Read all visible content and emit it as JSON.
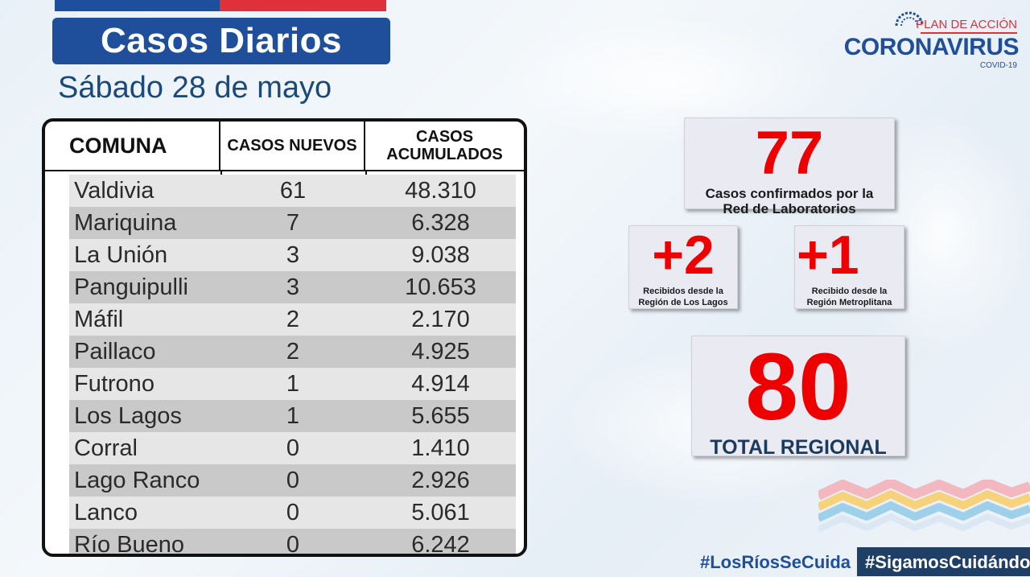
{
  "header": {
    "title": "Casos Diarios",
    "date": "Sábado 28 de mayo"
  },
  "logo": {
    "plan": "PLAN DE ACCIÓN",
    "name": "CORONAVIRUS",
    "covid": "COVID-19"
  },
  "table": {
    "columns": [
      "COMUNA",
      "CASOS NUEVOS",
      "CASOS ACUMULADOS"
    ],
    "col3_line1": "CASOS",
    "col3_line2": "ACUMULADOS",
    "rows": [
      {
        "comuna": "Valdivia",
        "nuevos": "61",
        "acumulados": "48.310"
      },
      {
        "comuna": "Mariquina",
        "nuevos": "7",
        "acumulados": "6.328"
      },
      {
        "comuna": "La Unión",
        "nuevos": "3",
        "acumulados": "9.038"
      },
      {
        "comuna": "Panguipulli",
        "nuevos": "3",
        "acumulados": "10.653"
      },
      {
        "comuna": "Máfil",
        "nuevos": "2",
        "acumulados": "2.170"
      },
      {
        "comuna": "Paillaco",
        "nuevos": "2",
        "acumulados": "4.925"
      },
      {
        "comuna": "Futrono",
        "nuevos": "1",
        "acumulados": "4.914"
      },
      {
        "comuna": "Los Lagos",
        "nuevos": "1",
        "acumulados": "5.655"
      },
      {
        "comuna": "Corral",
        "nuevos": "0",
        "acumulados": "1.410"
      },
      {
        "comuna": "Lago Ranco",
        "nuevos": "0",
        "acumulados": "2.926"
      },
      {
        "comuna": "Lanco",
        "nuevos": "0",
        "acumulados": "5.061"
      },
      {
        "comuna": "Río Bueno",
        "nuevos": "0",
        "acumulados": "6.242"
      }
    ]
  },
  "stats": {
    "lab": {
      "value": "77",
      "label_line1": "Casos confirmados  por la",
      "label_line2": "Red de Laboratorios"
    },
    "lagos": {
      "value": "+2",
      "label_line1": "Recibidos  desde la",
      "label_line2": "Región de Los Lagos"
    },
    "metro": {
      "value": "+1",
      "label_line1": "Recibido desde la",
      "label_line2": "Región Metroplitana"
    },
    "total": {
      "value": "80",
      "label": "TOTAL REGIONAL"
    }
  },
  "hashtags": [
    "#LosRíosSeCuida",
    "#SigamosCuidándonos"
  ],
  "colors": {
    "brand_blue": "#1f4f9a",
    "accent_red": "#e0313b",
    "stat_red": "#ee0000"
  }
}
